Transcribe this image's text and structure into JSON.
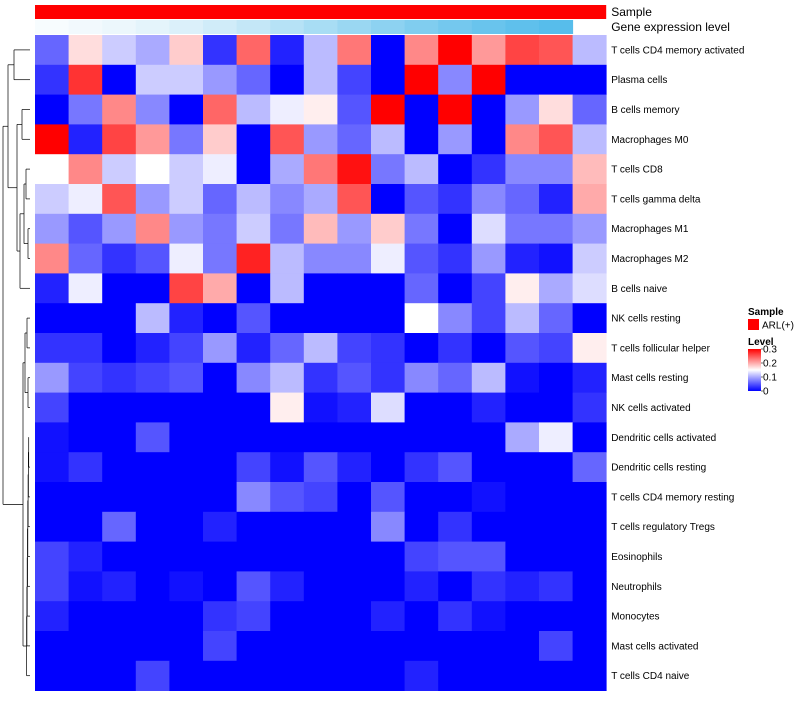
{
  "chart_data": {
    "type": "heatmap",
    "annotations": {
      "sample_label": "Sample",
      "gene_label": "Gene expression level",
      "sample_color": "#ff0000",
      "gene_colors": [
        "#f7fcfe",
        "#f2f9fd",
        "#ecf7fc",
        "#e4f4fb",
        "#dbf0fa",
        "#d0ecf9",
        "#c4e7f7",
        "#b6e2f6",
        "#a8ddf4",
        "#9ad7f2",
        "#8dd2f1",
        "#80cdef",
        "#74c8ee",
        "#69c4ed",
        "#5fc0ec",
        "#57bdeb"
      ]
    },
    "rows": [
      "T cells CD4 memory activated",
      "Plasma cells",
      "B cells memory",
      "Macrophages M0",
      "T cells CD8",
      "T cells gamma delta",
      "Macrophages M1",
      "Macrophages M2",
      "B cells naive",
      "NK cells resting",
      "T cells follicular helper",
      "Mast cells resting",
      "NK cells activated",
      "Dendritic cells activated",
      "Dendritic cells resting",
      "T cells CD4 memory resting",
      "T cells regulatory  Tregs",
      "Eosinophils",
      "Neutrophils",
      "Monocytes",
      "Mast cells activated",
      "T cells CD4 naive"
    ],
    "values": [
      [
        0.06,
        0.17,
        0.12,
        0.1,
        0.18,
        0.03,
        0.24,
        0.02,
        0.11,
        0.23,
        0.0,
        0.22,
        0.3,
        0.21,
        0.26,
        0.25,
        0.11
      ],
      [
        0.03,
        0.27,
        0.0,
        0.12,
        0.12,
        0.09,
        0.06,
        0.0,
        0.11,
        0.04,
        0.0,
        0.3,
        0.08,
        0.3,
        0.0,
        0.0,
        0.0
      ],
      [
        0.0,
        0.07,
        0.22,
        0.08,
        0.0,
        0.24,
        0.11,
        0.14,
        0.16,
        0.05,
        0.3,
        0.0,
        0.3,
        0.0,
        0.09,
        0.17,
        0.06
      ],
      [
        0.3,
        0.02,
        0.26,
        0.21,
        0.07,
        0.18,
        0.0,
        0.25,
        0.09,
        0.06,
        0.11,
        0.0,
        0.09,
        0.0,
        0.22,
        0.25,
        0.11
      ],
      [
        0.15,
        0.22,
        0.12,
        0.15,
        0.12,
        0.14,
        0.0,
        0.1,
        0.23,
        0.29,
        0.07,
        0.11,
        0.0,
        0.03,
        0.08,
        0.08,
        0.19
      ],
      [
        0.12,
        0.14,
        0.25,
        0.09,
        0.12,
        0.06,
        0.11,
        0.08,
        0.1,
        0.25,
        0.0,
        0.05,
        0.03,
        0.08,
        0.06,
        0.02,
        0.2
      ],
      [
        0.09,
        0.05,
        0.09,
        0.22,
        0.09,
        0.07,
        0.12,
        0.07,
        0.19,
        0.09,
        0.18,
        0.07,
        0.0,
        0.13,
        0.07,
        0.07,
        0.09
      ],
      [
        0.22,
        0.06,
        0.03,
        0.05,
        0.14,
        0.07,
        0.28,
        0.11,
        0.08,
        0.08,
        0.14,
        0.05,
        0.03,
        0.09,
        0.02,
        0.01,
        0.12
      ],
      [
        0.02,
        0.14,
        0.0,
        0.0,
        0.26,
        0.2,
        0.0,
        0.11,
        0.0,
        0.0,
        0.0,
        0.06,
        0.0,
        0.04,
        0.16,
        0.1,
        0.13
      ],
      [
        0.0,
        0.0,
        0.0,
        0.11,
        0.02,
        0.0,
        0.05,
        0.0,
        0.0,
        0.0,
        0.0,
        0.15,
        0.08,
        0.04,
        0.11,
        0.06,
        0.0
      ],
      [
        0.03,
        0.03,
        0.0,
        0.02,
        0.04,
        0.09,
        0.02,
        0.06,
        0.11,
        0.04,
        0.03,
        0.0,
        0.03,
        0.0,
        0.05,
        0.04,
        0.16
      ],
      [
        0.09,
        0.04,
        0.03,
        0.04,
        0.05,
        0.0,
        0.08,
        0.11,
        0.03,
        0.05,
        0.03,
        0.08,
        0.06,
        0.11,
        0.01,
        0.0,
        0.02
      ],
      [
        0.04,
        0.0,
        0.0,
        0.0,
        0.0,
        0.0,
        0.0,
        0.16,
        0.01,
        0.02,
        0.13,
        0.0,
        0.0,
        0.02,
        0.0,
        0.0,
        0.03
      ],
      [
        0.01,
        0.0,
        0.0,
        0.05,
        0.0,
        0.0,
        0.0,
        0.0,
        0.0,
        0.0,
        0.0,
        0.0,
        0.0,
        0.0,
        0.1,
        0.14,
        0.0
      ],
      [
        0.01,
        0.03,
        0.0,
        0.0,
        0.0,
        0.0,
        0.04,
        0.01,
        0.05,
        0.02,
        0.0,
        0.03,
        0.05,
        0.0,
        0.0,
        0.0,
        0.06
      ],
      [
        0.0,
        0.0,
        0.0,
        0.0,
        0.0,
        0.0,
        0.08,
        0.05,
        0.04,
        0.0,
        0.05,
        0.0,
        0.0,
        0.01,
        0.0,
        0.0,
        0.0
      ],
      [
        0.0,
        0.0,
        0.06,
        0.0,
        0.0,
        0.02,
        0.0,
        0.0,
        0.0,
        0.0,
        0.08,
        0.0,
        0.03,
        0.0,
        0.0,
        0.0,
        0.0
      ],
      [
        0.04,
        0.02,
        0.0,
        0.0,
        0.0,
        0.0,
        0.0,
        0.0,
        0.0,
        0.0,
        0.0,
        0.04,
        0.05,
        0.05,
        0.0,
        0.0,
        0.0
      ],
      [
        0.04,
        0.01,
        0.02,
        0.0,
        0.01,
        0.0,
        0.05,
        0.02,
        0.0,
        0.0,
        0.0,
        0.02,
        0.0,
        0.03,
        0.02,
        0.03,
        0.0
      ],
      [
        0.02,
        0.0,
        0.0,
        0.0,
        0.0,
        0.03,
        0.04,
        0.0,
        0.0,
        0.0,
        0.02,
        0.0,
        0.03,
        0.01,
        0.0,
        0.0,
        0.0
      ],
      [
        0.0,
        0.0,
        0.0,
        0.0,
        0.0,
        0.04,
        0.0,
        0.0,
        0.0,
        0.0,
        0.0,
        0.0,
        0.0,
        0.0,
        0.0,
        0.04,
        0.0
      ],
      [
        0.0,
        0.0,
        0.0,
        0.04,
        0.0,
        0.0,
        0.0,
        0.0,
        0.0,
        0.0,
        0.0,
        0.02,
        0.0,
        0.0,
        0.0,
        0.0,
        0.0
      ]
    ],
    "color_scale": {
      "domain": [
        0,
        0.3
      ],
      "colors": [
        "#0000ff",
        "#ffffff",
        "#ff0000"
      ]
    },
    "legend": {
      "position": "right",
      "sample_title": "Sample",
      "sample_entry": "ARL(+)",
      "level_title": "Level",
      "ticks": [
        "0.3",
        "0.2",
        "0.1",
        "0"
      ]
    },
    "dendrogram": "rows"
  }
}
